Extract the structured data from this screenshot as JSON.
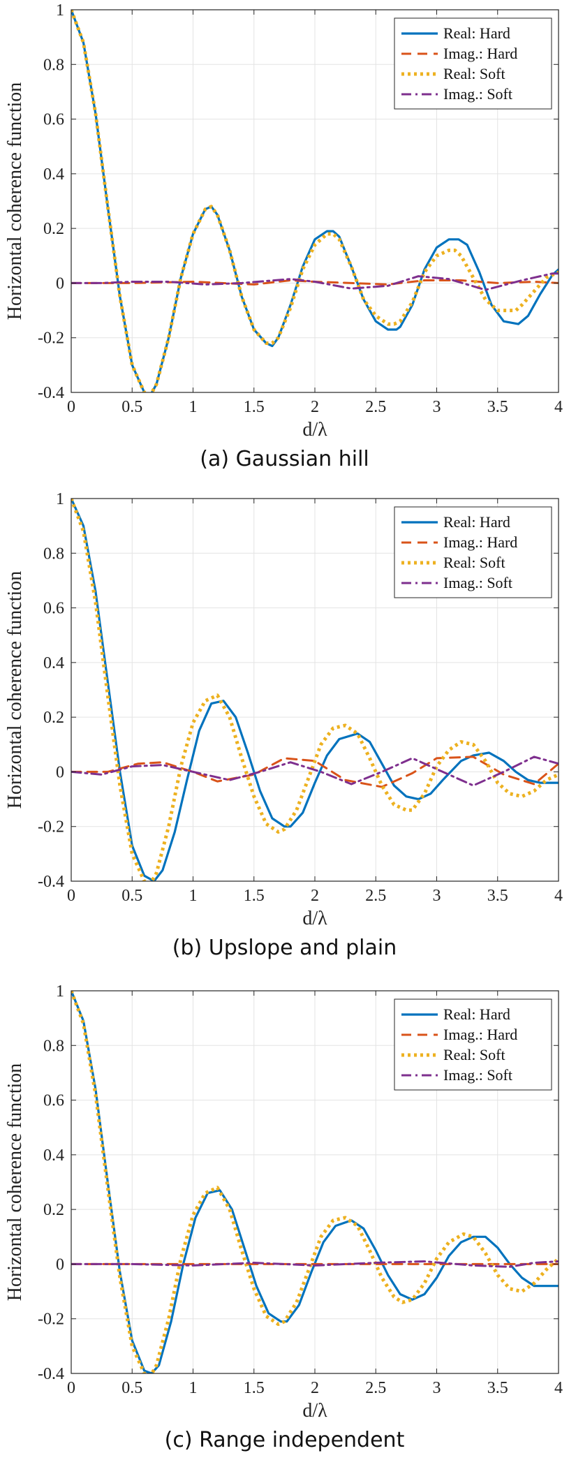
{
  "chart_data": [
    {
      "type": "line",
      "caption": "(a) Gaussian hill",
      "xlabel": "d/λ",
      "ylabel": "Horizontal coherence function",
      "xlim": [
        0,
        4
      ],
      "ylim": [
        -0.4,
        1
      ],
      "xticks": [
        "0",
        "0.5",
        "1",
        "1.5",
        "2",
        "2.5",
        "3",
        "3.5",
        "4"
      ],
      "yticks": [
        "-0.4",
        "-0.2",
        "0",
        "0.2",
        "0.4",
        "0.6",
        "0.8",
        "1"
      ],
      "grid": true,
      "legend_position": "top-right",
      "series": [
        {
          "name": "Real: Hard",
          "color": "#0072BD",
          "style": "solid",
          "x": [
            0,
            0.1,
            0.2,
            0.3,
            0.4,
            0.5,
            0.6,
            0.65,
            0.7,
            0.8,
            0.9,
            1.0,
            1.1,
            1.15,
            1.2,
            1.3,
            1.4,
            1.5,
            1.6,
            1.65,
            1.7,
            1.8,
            1.9,
            2.0,
            2.1,
            2.15,
            2.2,
            2.3,
            2.4,
            2.5,
            2.6,
            2.67,
            2.7,
            2.8,
            2.9,
            3.0,
            3.1,
            3.18,
            3.25,
            3.35,
            3.45,
            3.55,
            3.67,
            3.75,
            3.85,
            3.95,
            4.0
          ],
          "y": [
            1.0,
            0.88,
            0.62,
            0.28,
            -0.05,
            -0.3,
            -0.4,
            -0.41,
            -0.37,
            -0.2,
            0.02,
            0.18,
            0.27,
            0.28,
            0.25,
            0.12,
            -0.05,
            -0.17,
            -0.22,
            -0.23,
            -0.2,
            -0.08,
            0.06,
            0.16,
            0.19,
            0.19,
            0.17,
            0.06,
            -0.06,
            -0.14,
            -0.17,
            -0.17,
            -0.16,
            -0.08,
            0.05,
            0.13,
            0.16,
            0.16,
            0.14,
            0.04,
            -0.08,
            -0.14,
            -0.15,
            -0.12,
            -0.04,
            0.03,
            0.05
          ]
        },
        {
          "name": "Imag.: Hard",
          "color": "#D95319",
          "style": "dashed",
          "x": [
            0,
            0.5,
            1.0,
            1.5,
            1.8,
            2.0,
            2.3,
            2.6,
            2.9,
            3.2,
            3.5,
            3.8,
            4.0
          ],
          "y": [
            0,
            0,
            0.005,
            -0.005,
            0.01,
            0.005,
            0,
            -0.005,
            0.01,
            0.01,
            0,
            0.005,
            0
          ]
        },
        {
          "name": "Real: Soft",
          "color": "#EDB120",
          "style": "dotted",
          "x": [
            0,
            0.1,
            0.2,
            0.3,
            0.4,
            0.5,
            0.6,
            0.65,
            0.7,
            0.8,
            0.9,
            1.0,
            1.1,
            1.15,
            1.2,
            1.3,
            1.4,
            1.5,
            1.6,
            1.65,
            1.7,
            1.8,
            1.9,
            2.0,
            2.1,
            2.15,
            2.2,
            2.3,
            2.4,
            2.5,
            2.6,
            2.65,
            2.7,
            2.8,
            2.9,
            3.0,
            3.1,
            3.15,
            3.2,
            3.3,
            3.4,
            3.5,
            3.6,
            3.65,
            3.7,
            3.8,
            3.9,
            4.0
          ],
          "y": [
            1.0,
            0.88,
            0.62,
            0.28,
            -0.05,
            -0.3,
            -0.4,
            -0.41,
            -0.37,
            -0.2,
            0.02,
            0.18,
            0.27,
            0.28,
            0.25,
            0.12,
            -0.05,
            -0.17,
            -0.22,
            -0.22,
            -0.2,
            -0.09,
            0.05,
            0.14,
            0.18,
            0.18,
            0.16,
            0.06,
            -0.06,
            -0.12,
            -0.15,
            -0.15,
            -0.14,
            -0.07,
            0.04,
            0.1,
            0.12,
            0.12,
            0.1,
            0.02,
            -0.06,
            -0.1,
            -0.1,
            -0.1,
            -0.08,
            -0.03,
            0.02,
            0.04
          ]
        },
        {
          "name": "Imag.: Soft",
          "color": "#7E2F8E",
          "style": "dashdot",
          "x": [
            0,
            0.25,
            0.5,
            0.8,
            1.1,
            1.4,
            1.8,
            2.0,
            2.3,
            2.6,
            2.85,
            3.1,
            3.4,
            3.7,
            3.95,
            4.0
          ],
          "y": [
            0,
            0,
            0.005,
            0.005,
            -0.005,
            0,
            0.015,
            0.005,
            -0.02,
            -0.01,
            0.025,
            0.015,
            -0.025,
            0.01,
            0.035,
            0.035
          ]
        }
      ]
    },
    {
      "type": "line",
      "caption": "(b) Upslope and plain",
      "xlabel": "d/λ",
      "ylabel": "Horizontal coherence function",
      "xlim": [
        0,
        4
      ],
      "ylim": [
        -0.4,
        1
      ],
      "xticks": [
        "0",
        "0.5",
        "1",
        "1.5",
        "2",
        "2.5",
        "3",
        "3.5",
        "4"
      ],
      "yticks": [
        "-0.4",
        "-0.2",
        "0",
        "0.2",
        "0.4",
        "0.6",
        "0.8",
        "1"
      ],
      "grid": true,
      "legend_position": "top-right",
      "series": [
        {
          "name": "Real: Hard",
          "color": "#0072BD",
          "style": "solid",
          "x": [
            0,
            0.1,
            0.2,
            0.3,
            0.4,
            0.5,
            0.6,
            0.68,
            0.75,
            0.85,
            0.95,
            1.05,
            1.15,
            1.25,
            1.35,
            1.45,
            1.55,
            1.65,
            1.75,
            1.8,
            1.9,
            2.0,
            2.1,
            2.2,
            2.35,
            2.45,
            2.55,
            2.65,
            2.75,
            2.85,
            2.95,
            3.05,
            3.2,
            3.3,
            3.43,
            3.55,
            3.65,
            3.75,
            3.85,
            3.95,
            4.0
          ],
          "y": [
            1.0,
            0.9,
            0.66,
            0.33,
            0.0,
            -0.27,
            -0.38,
            -0.4,
            -0.36,
            -0.22,
            -0.03,
            0.15,
            0.25,
            0.26,
            0.2,
            0.07,
            -0.07,
            -0.17,
            -0.2,
            -0.2,
            -0.15,
            -0.04,
            0.06,
            0.12,
            0.14,
            0.11,
            0.03,
            -0.05,
            -0.09,
            -0.1,
            -0.08,
            -0.03,
            0.04,
            0.06,
            0.07,
            0.04,
            0.0,
            -0.03,
            -0.04,
            -0.04,
            -0.04
          ]
        },
        {
          "name": "Imag.: Hard",
          "color": "#D95319",
          "style": "dashed",
          "x": [
            0,
            0.3,
            0.55,
            0.75,
            1.0,
            1.2,
            1.5,
            1.75,
            2.0,
            2.25,
            2.55,
            2.8,
            3.0,
            3.3,
            3.55,
            3.8,
            4.0
          ],
          "y": [
            0,
            0.0,
            0.03,
            0.035,
            0.0,
            -0.035,
            -0.01,
            0.05,
            0.04,
            -0.03,
            -0.055,
            -0.005,
            0.05,
            0.055,
            -0.01,
            -0.045,
            0.03
          ]
        },
        {
          "name": "Real: Soft",
          "color": "#EDB120",
          "style": "dotted",
          "x": [
            0,
            0.1,
            0.2,
            0.3,
            0.4,
            0.5,
            0.6,
            0.65,
            0.7,
            0.8,
            0.9,
            1.0,
            1.1,
            1.2,
            1.3,
            1.4,
            1.5,
            1.6,
            1.7,
            1.75,
            1.85,
            1.95,
            2.05,
            2.15,
            2.25,
            2.35,
            2.45,
            2.55,
            2.65,
            2.75,
            2.8,
            2.9,
            3.0,
            3.1,
            3.2,
            3.3,
            3.4,
            3.5,
            3.6,
            3.7,
            3.8,
            3.9,
            4.0
          ],
          "y": [
            1.0,
            0.88,
            0.62,
            0.28,
            -0.05,
            -0.3,
            -0.4,
            -0.41,
            -0.37,
            -0.2,
            0.02,
            0.18,
            0.26,
            0.28,
            0.2,
            0.05,
            -0.09,
            -0.19,
            -0.22,
            -0.21,
            -0.14,
            -0.02,
            0.1,
            0.16,
            0.17,
            0.14,
            0.05,
            -0.05,
            -0.12,
            -0.14,
            -0.14,
            -0.08,
            0.02,
            0.08,
            0.11,
            0.1,
            0.04,
            -0.04,
            -0.08,
            -0.09,
            -0.07,
            -0.03,
            -0.01
          ]
        },
        {
          "name": "Imag.: Soft",
          "color": "#7E2F8E",
          "style": "dashdot",
          "x": [
            0,
            0.25,
            0.5,
            0.75,
            1.0,
            1.3,
            1.55,
            1.8,
            2.05,
            2.3,
            2.55,
            2.8,
            3.05,
            3.3,
            3.55,
            3.8,
            4.0
          ],
          "y": [
            0,
            -0.01,
            0.02,
            0.025,
            0.0,
            -0.03,
            0.0,
            0.035,
            0.0,
            -0.045,
            0.0,
            0.05,
            0.0,
            -0.05,
            0.0,
            0.055,
            0.03
          ]
        }
      ]
    },
    {
      "type": "line",
      "caption": "(c) Range independent",
      "xlabel": "d/λ",
      "ylabel": "Horizontal coherence function",
      "xlim": [
        0,
        4
      ],
      "ylim": [
        -0.4,
        1
      ],
      "xticks": [
        "0",
        "0.5",
        "1",
        "1.5",
        "2",
        "2.5",
        "3",
        "3.5",
        "4"
      ],
      "yticks": [
        "-0.4",
        "-0.2",
        "0",
        "0.2",
        "0.4",
        "0.6",
        "0.8",
        "1"
      ],
      "grid": true,
      "legend_position": "top-right",
      "series": [
        {
          "name": "Real: Hard",
          "color": "#0072BD",
          "style": "solid",
          "x": [
            0,
            0.1,
            0.2,
            0.3,
            0.4,
            0.5,
            0.6,
            0.66,
            0.72,
            0.82,
            0.92,
            1.02,
            1.12,
            1.22,
            1.32,
            1.42,
            1.52,
            1.62,
            1.72,
            1.77,
            1.87,
            1.97,
            2.07,
            2.17,
            2.3,
            2.4,
            2.5,
            2.6,
            2.7,
            2.8,
            2.9,
            3.0,
            3.1,
            3.2,
            3.3,
            3.4,
            3.5,
            3.6,
            3.7,
            3.8,
            3.9,
            4.0
          ],
          "y": [
            1.0,
            0.89,
            0.64,
            0.3,
            -0.03,
            -0.28,
            -0.39,
            -0.4,
            -0.37,
            -0.21,
            0.0,
            0.17,
            0.26,
            0.27,
            0.2,
            0.06,
            -0.08,
            -0.18,
            -0.21,
            -0.21,
            -0.15,
            -0.03,
            0.08,
            0.14,
            0.16,
            0.13,
            0.05,
            -0.04,
            -0.11,
            -0.13,
            -0.11,
            -0.05,
            0.03,
            0.08,
            0.1,
            0.1,
            0.06,
            0.0,
            -0.05,
            -0.08,
            -0.08,
            -0.08
          ]
        },
        {
          "name": "Imag.: Hard",
          "color": "#D95319",
          "style": "dashed",
          "x": [
            0,
            0.5,
            1.0,
            1.5,
            2.0,
            2.5,
            3.0,
            3.5,
            4.0
          ],
          "y": [
            0,
            0,
            0,
            0,
            0,
            0,
            0,
            0,
            0
          ]
        },
        {
          "name": "Real: Soft",
          "color": "#EDB120",
          "style": "dotted",
          "x": [
            0,
            0.1,
            0.2,
            0.3,
            0.4,
            0.5,
            0.6,
            0.65,
            0.7,
            0.8,
            0.9,
            1.0,
            1.1,
            1.2,
            1.3,
            1.4,
            1.5,
            1.6,
            1.7,
            1.75,
            1.85,
            1.95,
            2.05,
            2.15,
            2.25,
            2.35,
            2.45,
            2.55,
            2.65,
            2.72,
            2.8,
            2.9,
            3.0,
            3.1,
            3.22,
            3.3,
            3.4,
            3.5,
            3.6,
            3.7,
            3.8,
            3.9,
            4.0
          ],
          "y": [
            1.0,
            0.88,
            0.62,
            0.28,
            -0.05,
            -0.3,
            -0.4,
            -0.41,
            -0.37,
            -0.2,
            0.02,
            0.18,
            0.26,
            0.28,
            0.2,
            0.05,
            -0.09,
            -0.19,
            -0.22,
            -0.21,
            -0.14,
            -0.02,
            0.1,
            0.16,
            0.17,
            0.14,
            0.05,
            -0.05,
            -0.12,
            -0.14,
            -0.13,
            -0.07,
            0.02,
            0.08,
            0.11,
            0.1,
            0.04,
            -0.04,
            -0.09,
            -0.1,
            -0.07,
            -0.02,
            0.02
          ]
        },
        {
          "name": "Imag.: Soft",
          "color": "#7E2F8E",
          "style": "dashdot",
          "x": [
            0,
            0.5,
            1.0,
            1.5,
            2.0,
            2.5,
            2.9,
            3.3,
            3.6,
            3.8,
            4.0
          ],
          "y": [
            0,
            0,
            -0.005,
            0.005,
            -0.005,
            0.005,
            0.01,
            -0.005,
            -0.01,
            0.005,
            0.01
          ]
        }
      ]
    }
  ]
}
